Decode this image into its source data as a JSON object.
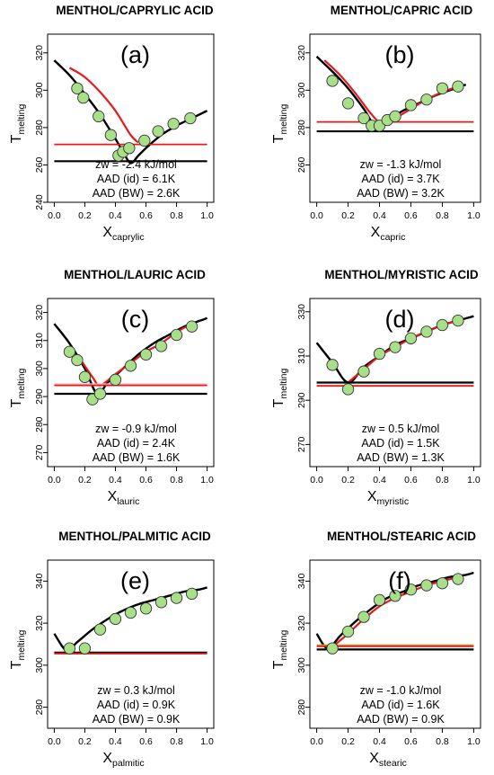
{
  "colors": {
    "model_bw": "#000000",
    "model_id": "#e41a1c",
    "points": "#a8e08a",
    "points_edge": "#333333",
    "axes": "#000000",
    "pink": "#f4b6c2",
    "olive": "#b8a040"
  },
  "chart_data": [
    {
      "type": "line",
      "panel_label": "(a)",
      "title": "MENTHOL/CAPRYLIC ACID",
      "ylabel": "T",
      "ylabel_sub": "melting",
      "xlabel": "X",
      "xlabel_sub": "caprylic",
      "xlim": [
        0,
        1
      ],
      "ylim": [
        240,
        330
      ],
      "xticks": [
        "0.0",
        "0.2",
        "0.4",
        "0.6",
        "0.8",
        "1.0"
      ],
      "yticks": [
        "240",
        "260",
        "280",
        "300",
        "320"
      ],
      "annotations": [
        "zw = -2.4 kJ/mol",
        "AAD (id)  = 6.1K",
        "AAD (BW)  = 2.6K"
      ],
      "experimental": {
        "x": [
          0.15,
          0.19,
          0.29,
          0.37,
          0.42,
          0.45,
          0.49,
          0.59,
          0.68,
          0.78,
          0.89
        ],
        "y": [
          301,
          296,
          286,
          276,
          265,
          267,
          269,
          273,
          278,
          282,
          285
        ]
      },
      "series": [
        {
          "role": "bw",
          "x": [
            0.0,
            0.1,
            0.2,
            0.3,
            0.4,
            0.45,
            0.5,
            0.55,
            0.6,
            0.7,
            0.8,
            0.9,
            1.0
          ],
          "y": [
            316,
            308,
            298,
            287,
            274,
            267,
            261,
            265,
            269,
            276,
            281,
            285,
            289
          ]
        },
        {
          "role": "id",
          "x": [
            0.1,
            0.2,
            0.3,
            0.4,
            0.5,
            0.55
          ],
          "y": [
            312,
            307,
            299,
            289,
            276,
            272
          ]
        },
        {
          "role": "eutectic_bw",
          "x": [
            0.0,
            1.0
          ],
          "y": [
            262,
            262
          ]
        },
        {
          "role": "eutectic_id",
          "x": [
            0.0,
            1.0
          ],
          "y": [
            271,
            271
          ]
        }
      ]
    },
    {
      "type": "line",
      "panel_label": "(b)",
      "title": "MENTHOL/CAPRIC ACID",
      "ylabel": "T",
      "ylabel_sub": "melting",
      "xlabel": "X",
      "xlabel_sub": "capric",
      "xlim": [
        0,
        1
      ],
      "ylim": [
        240,
        330
      ],
      "xticks": [
        "0.0",
        "0.2",
        "0.4",
        "0.6",
        "0.8",
        "1.0"
      ],
      "yticks": [
        "260",
        "280",
        "300",
        "320"
      ],
      "annotations": [
        "zw = -1.3 kJ/mol",
        "AAD (id)  = 3.7K",
        "AAD (BW)  = 3.2K"
      ],
      "experimental": {
        "x": [
          0.1,
          0.2,
          0.3,
          0.35,
          0.4,
          0.45,
          0.5,
          0.6,
          0.7,
          0.8,
          0.9
        ],
        "y": [
          305,
          293,
          285,
          281,
          281,
          284,
          286,
          292,
          295,
          301,
          302
        ]
      },
      "series": [
        {
          "role": "bw",
          "x": [
            0.0,
            0.1,
            0.2,
            0.3,
            0.38,
            0.45,
            0.55,
            0.65,
            0.75,
            0.85,
            0.95
          ],
          "y": [
            318,
            310,
            301,
            290,
            280,
            284,
            289,
            293,
            297,
            300,
            303
          ]
        },
        {
          "role": "id",
          "x": [
            0.05,
            0.15,
            0.25,
            0.35,
            0.42,
            0.5,
            0.6,
            0.7,
            0.8,
            0.9
          ],
          "y": [
            316,
            308,
            298,
            287,
            282,
            285,
            290,
            295,
            299,
            302
          ]
        },
        {
          "role": "eutectic_bw",
          "x": [
            0.0,
            1.0
          ],
          "y": [
            278,
            278
          ]
        },
        {
          "role": "eutectic_id",
          "x": [
            0.0,
            1.0
          ],
          "y": [
            283,
            283
          ]
        }
      ]
    },
    {
      "type": "line",
      "panel_label": "(c)",
      "title": "MENTHOL/LAURIC ACID",
      "ylabel": "T",
      "ylabel_sub": "melting",
      "xlabel": "X",
      "xlabel_sub": "lauric",
      "xlim": [
        0,
        1
      ],
      "ylim": [
        265,
        325
      ],
      "xticks": [
        "0.0",
        "0.2",
        "0.4",
        "0.6",
        "0.8",
        "1.0"
      ],
      "yticks": [
        "270",
        "280",
        "290",
        "300",
        "310",
        "320"
      ],
      "annotations": [
        "zw = -0.9 kJ/mol",
        "AAD (id)  = 2.4K",
        "AAD (BW)  = 1.6K"
      ],
      "experimental": {
        "x": [
          0.1,
          0.15,
          0.2,
          0.25,
          0.3,
          0.4,
          0.5,
          0.6,
          0.7,
          0.8,
          0.9
        ],
        "y": [
          306,
          303,
          297,
          289,
          291,
          296,
          301,
          305,
          308,
          312,
          315
        ]
      },
      "series": [
        {
          "role": "bw",
          "x": [
            0.0,
            0.1,
            0.2,
            0.28,
            0.35,
            0.45,
            0.55,
            0.65,
            0.75,
            0.85,
            0.95,
            1.0
          ],
          "y": [
            316,
            309,
            300,
            291,
            295,
            300,
            305,
            309,
            312,
            315,
            317,
            318
          ]
        },
        {
          "role": "id",
          "x": [
            0.15,
            0.25,
            0.3,
            0.4,
            0.5,
            0.6,
            0.7,
            0.8,
            0.9
          ],
          "y": [
            305,
            297,
            294,
            298,
            302,
            306,
            309,
            313,
            316
          ]
        },
        {
          "role": "eutectic_bw",
          "x": [
            0.0,
            1.0
          ],
          "y": [
            291,
            291
          ]
        },
        {
          "role": "eutectic_id",
          "x": [
            0.0,
            1.0
          ],
          "y": [
            294,
            294
          ]
        }
      ]
    },
    {
      "type": "line",
      "panel_label": "(d)",
      "title": "MENTHOL/MYRISTIC ACID",
      "ylabel": "T",
      "ylabel_sub": "melting",
      "xlabel": "X",
      "xlabel_sub": "myristic",
      "xlim": [
        0,
        1
      ],
      "ylim": [
        260,
        336
      ],
      "xticks": [
        "0.0",
        "0.2",
        "0.4",
        "0.6",
        "0.8",
        "1.0"
      ],
      "yticks": [
        "270",
        "290",
        "310",
        "330"
      ],
      "annotations": [
        "zw = 0.5 kJ/mol",
        "AAD (id)  = 1.5K",
        "AAD (BW)  = 1.3K"
      ],
      "experimental": {
        "x": [
          0.1,
          0.2,
          0.3,
          0.4,
          0.5,
          0.6,
          0.7,
          0.8,
          0.9
        ],
        "y": [
          306,
          295,
          303,
          311,
          314,
          318,
          321,
          324,
          326
        ]
      },
      "series": [
        {
          "role": "bw",
          "x": [
            0.0,
            0.1,
            0.2,
            0.3,
            0.4,
            0.5,
            0.6,
            0.7,
            0.8,
            0.9,
            1.0
          ],
          "y": [
            316,
            307,
            298,
            305,
            310,
            315,
            318,
            321,
            324,
            326,
            328
          ]
        },
        {
          "role": "id",
          "x": [
            0.2,
            0.3,
            0.4,
            0.5,
            0.6,
            0.7,
            0.8,
            0.9
          ],
          "y": [
            298,
            304,
            310,
            314,
            318,
            321,
            324,
            326
          ]
        },
        {
          "role": "eutectic_bw",
          "x": [
            0.0,
            1.0
          ],
          "y": [
            298,
            298
          ]
        },
        {
          "role": "eutectic_id",
          "x": [
            0.0,
            1.0
          ],
          "y": [
            296.5,
            296.5
          ]
        }
      ]
    },
    {
      "type": "line",
      "panel_label": "(e)",
      "title": "MENTHOL/PALMITIC ACID",
      "ylabel": "T",
      "ylabel_sub": "melting",
      "xlabel": "X",
      "xlabel_sub": "palmitic",
      "xlim": [
        0,
        1
      ],
      "ylim": [
        270,
        350
      ],
      "xticks": [
        "0.0",
        "0.2",
        "0.4",
        "0.6",
        "0.8",
        "1.0"
      ],
      "yticks": [
        "280",
        "300",
        "320",
        "340"
      ],
      "annotations": [
        "zw = 0.3 kJ/mol",
        "AAD (id)  = 0.9K",
        "AAD (BW)  = 0.9K"
      ],
      "experimental": {
        "x": [
          0.1,
          0.2,
          0.3,
          0.4,
          0.5,
          0.6,
          0.7,
          0.8,
          0.9
        ],
        "y": [
          308,
          308,
          317,
          322,
          325,
          327,
          330,
          332,
          334
        ]
      },
      "series": [
        {
          "role": "bw",
          "x": [
            0.0,
            0.08,
            0.15,
            0.25,
            0.35,
            0.45,
            0.55,
            0.65,
            0.75,
            0.85,
            0.95,
            1.0
          ],
          "y": [
            315,
            307,
            311,
            317,
            322,
            326,
            329,
            331,
            333,
            335,
            336,
            337
          ]
        },
        {
          "role": "eutectic_bw",
          "x": [
            0.0,
            1.0
          ],
          "y": [
            306,
            306
          ]
        },
        {
          "role": "eutectic_id",
          "x": [
            0.0,
            1.0
          ],
          "y": [
            305.5,
            305.5
          ]
        }
      ]
    },
    {
      "type": "line",
      "panel_label": "(f)",
      "title": "MENTHOL/STEARIC ACID",
      "ylabel": "T",
      "ylabel_sub": "melting",
      "xlabel": "X",
      "xlabel_sub": "stearic",
      "xlim": [
        0,
        1
      ],
      "ylim": [
        270,
        350
      ],
      "xticks": [
        "0.0",
        "0.2",
        "0.4",
        "0.6",
        "0.8",
        "1.0"
      ],
      "yticks": [
        "280",
        "300",
        "320",
        "340"
      ],
      "annotations": [
        "zw = -1.0 kJ/mol",
        "AAD (id)  = 1.6K",
        "AAD (BW)  = 0.9K"
      ],
      "experimental": {
        "x": [
          0.1,
          0.2,
          0.3,
          0.4,
          0.5,
          0.6,
          0.7,
          0.8,
          0.9
        ],
        "y": [
          308,
          316,
          323,
          331,
          333,
          336,
          338,
          339,
          341
        ]
      },
      "series": [
        {
          "role": "bw",
          "x": [
            0.0,
            0.07,
            0.15,
            0.25,
            0.35,
            0.45,
            0.55,
            0.65,
            0.75,
            0.85,
            0.95,
            1.0
          ],
          "y": [
            315,
            308,
            314,
            321,
            327,
            332,
            335,
            338,
            340,
            342,
            343,
            344
          ]
        },
        {
          "role": "id",
          "x": [
            0.12,
            0.2,
            0.3,
            0.4,
            0.5,
            0.6,
            0.7,
            0.8,
            0.9
          ],
          "y": [
            310,
            315,
            322,
            328,
            332,
            335,
            338,
            340,
            342
          ]
        },
        {
          "role": "eutectic_bw",
          "x": [
            0.0,
            1.0
          ],
          "y": [
            307.5,
            307.5
          ]
        },
        {
          "role": "eutectic_id",
          "x": [
            0.0,
            1.0
          ],
          "y": [
            309,
            309
          ]
        }
      ]
    }
  ]
}
